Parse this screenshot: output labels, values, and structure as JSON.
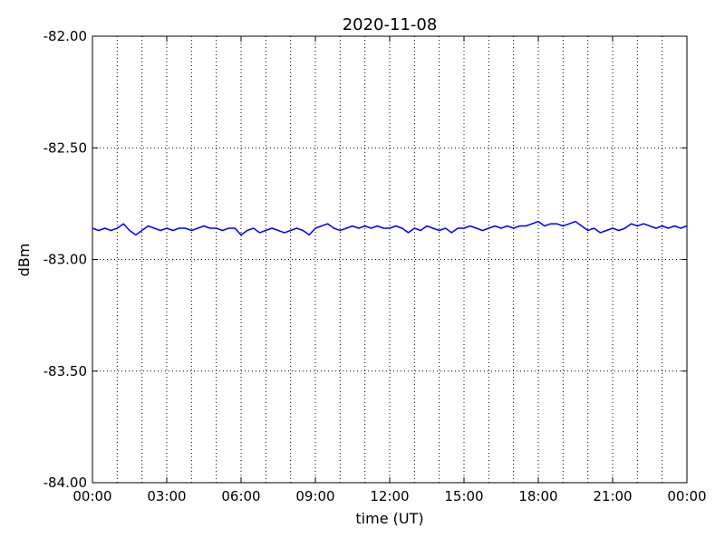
{
  "chart_data": {
    "type": "line",
    "title": "2020-11-08",
    "xlabel": "time (UT)",
    "ylabel": "dBm",
    "xlim": [
      "00:00",
      "24:00"
    ],
    "ylim": [
      -84.0,
      -82.0
    ],
    "x_tick_labels": [
      "00:00",
      "03:00",
      "06:00",
      "09:00",
      "12:00",
      "15:00",
      "18:00",
      "21:00",
      "00:00"
    ],
    "y_tick_labels": [
      "-82.00",
      "-82.50",
      "-83.00",
      "-83.50",
      "-84.00"
    ],
    "y_ticks": [
      -82.0,
      -82.5,
      -83.0,
      -83.5,
      -84.0
    ],
    "grid": true,
    "line_color": "#0000ff",
    "x": [
      "00:00",
      "00:15",
      "00:30",
      "00:45",
      "01:00",
      "01:15",
      "01:30",
      "01:45",
      "02:00",
      "02:15",
      "02:30",
      "02:45",
      "03:00",
      "03:15",
      "03:30",
      "03:45",
      "04:00",
      "04:15",
      "04:30",
      "04:45",
      "05:00",
      "05:15",
      "05:30",
      "05:45",
      "06:00",
      "06:15",
      "06:30",
      "06:45",
      "07:00",
      "07:15",
      "07:30",
      "07:45",
      "08:00",
      "08:15",
      "08:30",
      "08:45",
      "09:00",
      "09:15",
      "09:30",
      "09:45",
      "10:00",
      "10:15",
      "10:30",
      "10:45",
      "11:00",
      "11:15",
      "11:30",
      "11:45",
      "12:00",
      "12:15",
      "12:30",
      "12:45",
      "13:00",
      "13:15",
      "13:30",
      "13:45",
      "14:00",
      "14:15",
      "14:30",
      "14:45",
      "15:00",
      "15:15",
      "15:30",
      "15:45",
      "16:00",
      "16:15",
      "16:30",
      "16:45",
      "17:00",
      "17:15",
      "17:30",
      "17:45",
      "18:00",
      "18:15",
      "18:30",
      "18:45",
      "19:00",
      "19:15",
      "19:30",
      "19:45",
      "20:00",
      "20:15",
      "20:30",
      "20:45",
      "21:00",
      "21:15",
      "21:30",
      "21:45",
      "22:00",
      "22:15",
      "22:30",
      "22:45",
      "23:00",
      "23:15",
      "23:30",
      "23:45",
      "24:00"
    ],
    "values": [
      -82.86,
      -82.87,
      -82.86,
      -82.87,
      -82.86,
      -82.84,
      -82.87,
      -82.89,
      -82.87,
      -82.85,
      -82.86,
      -82.87,
      -82.86,
      -82.87,
      -82.86,
      -82.86,
      -82.87,
      -82.86,
      -82.85,
      -82.86,
      -82.86,
      -82.87,
      -82.86,
      -82.86,
      -82.89,
      -82.87,
      -82.86,
      -82.88,
      -82.87,
      -82.86,
      -82.87,
      -82.88,
      -82.87,
      -82.86,
      -82.87,
      -82.89,
      -82.86,
      -82.85,
      -82.84,
      -82.86,
      -82.87,
      -82.86,
      -82.85,
      -82.86,
      -82.85,
      -82.86,
      -82.85,
      -82.86,
      -82.86,
      -82.85,
      -82.86,
      -82.88,
      -82.86,
      -82.87,
      -82.85,
      -82.86,
      -82.87,
      -82.86,
      -82.88,
      -82.86,
      -82.86,
      -82.85,
      -82.86,
      -82.87,
      -82.86,
      -82.85,
      -82.86,
      -82.85,
      -82.86,
      -82.85,
      -82.85,
      -82.84,
      -82.83,
      -82.85,
      -82.84,
      -82.84,
      -82.85,
      -82.84,
      -82.83,
      -82.85,
      -82.87,
      -82.86,
      -82.88,
      -82.87,
      -82.86,
      -82.87,
      -82.86,
      -82.84,
      -82.85,
      -82.84,
      -82.85,
      -82.86,
      -82.85,
      -82.86,
      -82.85,
      -82.86,
      -82.85
    ]
  }
}
